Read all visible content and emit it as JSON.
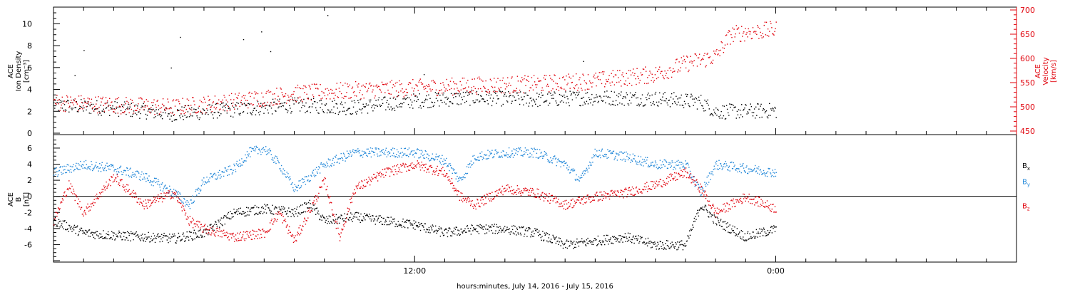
{
  "colors": {
    "black": "#000000",
    "red": "#e0000a",
    "blue": "#1f86d8",
    "right_axis": "#e0000a"
  },
  "xlabel": "hours:minutes, July 14, 2016 - July 15, 2016",
  "x_ticks": [
    {
      "hour": 12,
      "label": "12:00"
    },
    {
      "hour": 24,
      "label": "0:00"
    }
  ],
  "xlim_hours": [
    0,
    32
  ],
  "chart_data": [
    {
      "type": "scatter",
      "panel": "top",
      "ylabel_left": [
        "ACE",
        "Ion Density",
        "[cm⁻³]"
      ],
      "ylabel_right": [
        "ACE",
        "Velocity",
        "[km/s]"
      ],
      "ylim_left": [
        0,
        11
      ],
      "yticks_left": [
        "0",
        "2",
        "4",
        "6",
        "8",
        "10"
      ],
      "ylim_right": [
        450,
        700
      ],
      "yticks_right": [
        "450",
        "500",
        "550",
        "600",
        "650",
        "700"
      ],
      "series": [
        {
          "key": "density",
          "axis": "left",
          "color": "black",
          "x_hours": [
            0,
            2,
            4,
            6,
            8,
            10,
            12,
            14,
            16,
            18,
            20,
            21.5,
            22,
            24
          ],
          "y": [
            2.6,
            2.3,
            1.8,
            2.2,
            2.6,
            2.4,
            3.0,
            3.3,
            3.1,
            3.3,
            3.2,
            2.9,
            2.0,
            2.1
          ]
        },
        {
          "key": "velocity",
          "axis": "right",
          "color": "red",
          "x_hours": [
            0,
            2,
            4,
            6,
            8,
            10,
            12,
            14,
            16,
            18,
            20,
            21,
            22,
            22.5,
            23,
            24
          ],
          "y": [
            510,
            505,
            500,
            512,
            528,
            535,
            540,
            545,
            548,
            555,
            568,
            590,
            605,
            650,
            655,
            660
          ]
        }
      ],
      "spikes": {
        "x_hours": [
          0.7,
          1.0,
          3.9,
          4.2,
          6.3,
          6.9,
          7.2,
          9.1,
          12.3,
          17.6
        ],
        "y": [
          5.3,
          7.6,
          6.0,
          8.8,
          8.6,
          9.3,
          7.5,
          10.8,
          5.4,
          6.6
        ]
      }
    },
    {
      "type": "scatter",
      "panel": "bottom",
      "ylabel_left": [
        "ACE",
        "B",
        "[nT]"
      ],
      "ylim": [
        -8,
        7.5
      ],
      "yticks": [
        "-6",
        "-4",
        "-2",
        "0",
        "2",
        "4",
        "6"
      ],
      "legend": [
        {
          "label": "B",
          "sub": "x",
          "color": "black"
        },
        {
          "label": "B",
          "sub": "y",
          "color": "blue"
        },
        {
          "label": "B",
          "sub": "z",
          "color": "red"
        }
      ],
      "series": [
        {
          "key": "bx",
          "color": "black",
          "x_hours": [
            0,
            1,
            2,
            3,
            4,
            5,
            6,
            7,
            8,
            8.5,
            9,
            10,
            11,
            12,
            13,
            14,
            15,
            16,
            17,
            18,
            19,
            20,
            21,
            21.5,
            22,
            23,
            24
          ],
          "y": [
            -3.0,
            -4.5,
            -4.8,
            -5.0,
            -5.2,
            -4.5,
            -2.0,
            -1.5,
            -2.0,
            -1.0,
            -3.0,
            -2.5,
            -3.0,
            -3.5,
            -4.5,
            -4.0,
            -4.0,
            -4.5,
            -6.0,
            -5.5,
            -5.0,
            -6.0,
            -6.0,
            -1.0,
            -3.0,
            -5.0,
            -4.0
          ]
        },
        {
          "key": "by",
          "color": "blue",
          "x_hours": [
            0,
            1,
            2,
            3,
            4,
            4.5,
            5,
            6,
            6.5,
            7,
            7.5,
            8,
            9,
            10,
            11,
            12,
            13,
            13.5,
            14,
            15,
            16,
            17,
            17.5,
            18,
            19,
            20,
            21,
            21.5,
            22,
            23,
            24
          ],
          "y": [
            3.0,
            4.0,
            3.5,
            2.5,
            0.5,
            -1.0,
            2.0,
            3.5,
            5.5,
            6.0,
            4.0,
            1.0,
            4.0,
            5.5,
            5.5,
            5.5,
            4.5,
            2.0,
            5.0,
            5.5,
            5.5,
            4.0,
            2.0,
            5.5,
            5.0,
            4.0,
            4.0,
            0.5,
            4.0,
            3.5,
            3.0
          ]
        },
        {
          "key": "bz",
          "color": "red",
          "x_hours": [
            0,
            0.5,
            1,
            2,
            3,
            4,
            4.5,
            5,
            6,
            7,
            7.5,
            8,
            9,
            9.5,
            10,
            11,
            12,
            13,
            13.5,
            14,
            15,
            16,
            17,
            18,
            19,
            20,
            21,
            21.5,
            22,
            23,
            24
          ],
          "y": [
            -3.0,
            1.5,
            -2.0,
            2.5,
            -1.0,
            0.5,
            -3.0,
            -4.0,
            -5.0,
            -4.5,
            -2.0,
            -5.5,
            2.0,
            -5.0,
            1.0,
            3.0,
            4.0,
            3.0,
            0.0,
            -1.0,
            1.0,
            0.5,
            -1.0,
            0.0,
            0.5,
            1.5,
            3.0,
            1.0,
            -2.0,
            0.0,
            -1.5
          ]
        }
      ]
    }
  ]
}
